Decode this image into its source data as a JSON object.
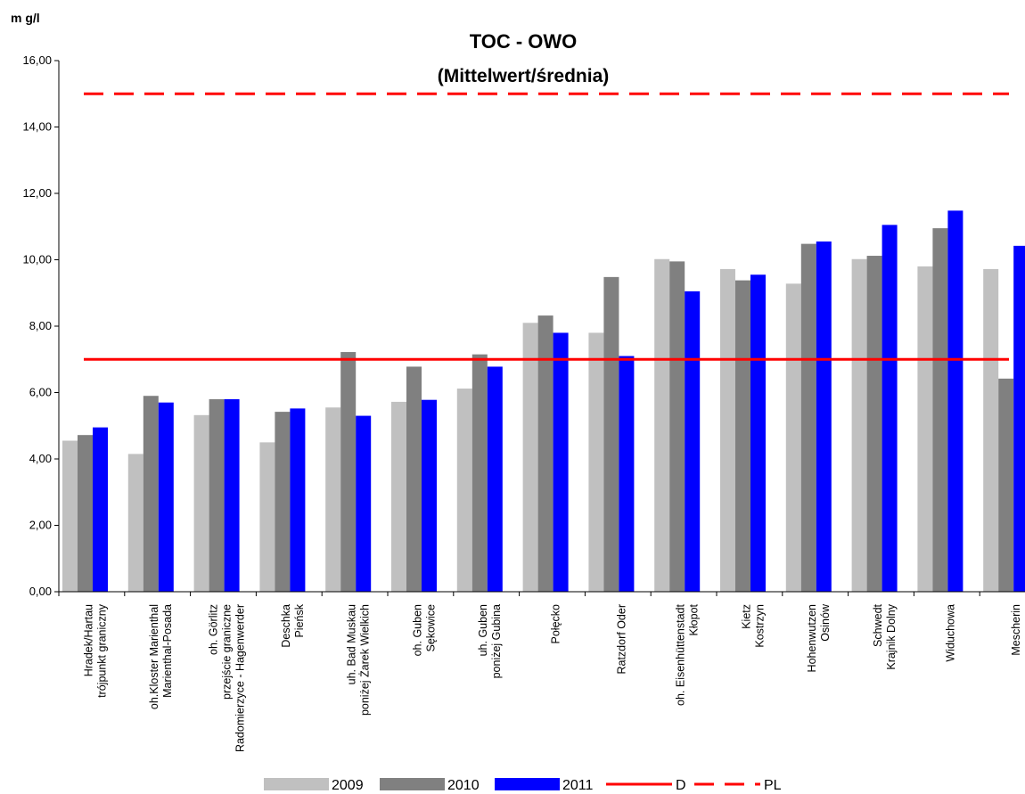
{
  "chart_data": {
    "type": "bar",
    "title": "TOC - OWO",
    "subtitle": "(Mittelwert/średnia)",
    "ylabel": "m g/l",
    "ylim": [
      0,
      16
    ],
    "yticks": [
      "0,00",
      "2,00",
      "4,00",
      "6,00",
      "8,00",
      "10,00",
      "12,00",
      "14,00",
      "16,00"
    ],
    "categories": [
      [
        "Hradek/Hartau",
        "trójpunkt graniczny"
      ],
      [
        "oh.Kloster Marienthal",
        "Marienthal-Posada"
      ],
      [
        "oh. Görlitz",
        "przejście graniczne",
        "Radomierzyce - Hagenwerder"
      ],
      [
        "Deschka",
        "Pieńsk"
      ],
      [
        "uh. Bad Muskau",
        "poniżej Żarek Wielkich"
      ],
      [
        "oh. Guben",
        "Sękowice"
      ],
      [
        "uh. Guben",
        "poniżej Gubina"
      ],
      [
        "Połęcko"
      ],
      [
        "Ratzdorf Oder"
      ],
      [
        "oh. Eisenhüttenstadt",
        "Kłopot"
      ],
      [
        "Kietz",
        "Kostrzyn"
      ],
      [
        "Hohenwutzen",
        "Osinów"
      ],
      [
        "Schwedt",
        "Krajnik Dolny"
      ],
      [
        "Widuchowa"
      ],
      [
        "Mescherin"
      ]
    ],
    "series": [
      {
        "name": "2009",
        "color": "#c0c0c0",
        "values": [
          4.55,
          4.15,
          5.32,
          4.5,
          5.55,
          5.72,
          6.12,
          8.1,
          7.8,
          10.02,
          9.72,
          9.28,
          10.02,
          9.8,
          9.72
        ]
      },
      {
        "name": "2010",
        "color": "#808080",
        "values": [
          4.72,
          5.9,
          5.8,
          5.42,
          7.22,
          6.78,
          7.15,
          8.32,
          9.48,
          9.95,
          9.38,
          10.48,
          10.12,
          10.95,
          6.42
        ]
      },
      {
        "name": "2011",
        "color": "#0000ff",
        "values": [
          4.95,
          5.7,
          5.8,
          5.52,
          5.3,
          5.78,
          6.78,
          7.8,
          7.1,
          9.05,
          9.55,
          10.55,
          11.05,
          11.48,
          10.42
        ]
      }
    ],
    "reference_lines": [
      {
        "name": "D",
        "value": 7.0,
        "color": "#ff0000",
        "style": "solid"
      },
      {
        "name": "PL",
        "value": 15.0,
        "color": "#ff0000",
        "style": "dashed"
      }
    ],
    "legend_labels": [
      "2009",
      "2010",
      "2011",
      "D",
      "PL"
    ],
    "legend": "bottom",
    "grid": false
  }
}
